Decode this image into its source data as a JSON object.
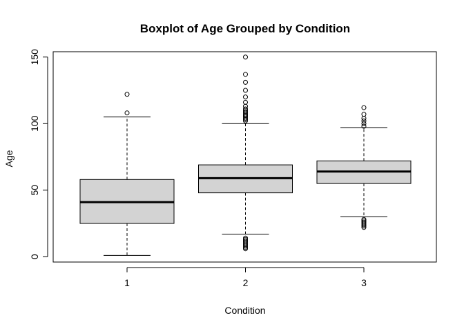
{
  "chart_data": {
    "type": "boxplot",
    "title": "Boxplot of Age Grouped by Condition",
    "xlabel": "Condition",
    "ylabel": "Age",
    "ylim": [
      -4,
      154
    ],
    "yticks": [
      0,
      50,
      100,
      150
    ],
    "grid": false,
    "box_fill": "#d3d3d3",
    "categories": [
      "1",
      "2",
      "3"
    ],
    "boxes": [
      {
        "category": "1",
        "whisker_low": 1,
        "q1": 25,
        "median": 41,
        "q3": 58,
        "whisker_high": 105,
        "outliers": [
          108,
          122
        ]
      },
      {
        "category": "2",
        "whisker_low": 17,
        "q1": 48,
        "median": 59,
        "q3": 69,
        "whisker_high": 100,
        "outliers": [
          6,
          7,
          8,
          9,
          10,
          11,
          12,
          13,
          14,
          102,
          103,
          104,
          105,
          106,
          107,
          108,
          109,
          110,
          111,
          113,
          116,
          120,
          125,
          131,
          137,
          150
        ]
      },
      {
        "category": "3",
        "whisker_low": 30,
        "q1": 55,
        "median": 64,
        "q3": 72,
        "whisker_high": 97,
        "outliers": [
          22,
          23,
          24,
          25,
          26,
          27,
          28,
          98,
          100,
          102,
          104,
          107,
          112
        ]
      }
    ]
  }
}
